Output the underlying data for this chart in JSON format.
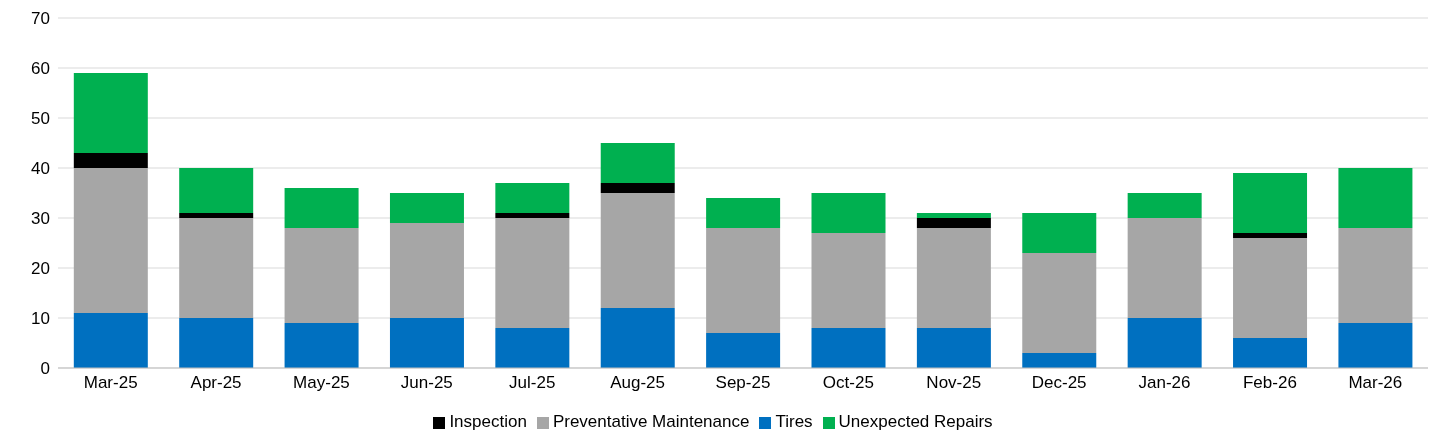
{
  "chart_data": {
    "type": "bar",
    "stacked": true,
    "categories": [
      "Mar-25",
      "Apr-25",
      "May-25",
      "Jun-25",
      "Jul-25",
      "Aug-25",
      "Sep-25",
      "Oct-25",
      "Nov-25",
      "Dec-25",
      "Jan-26",
      "Feb-26",
      "Mar-26"
    ],
    "series": [
      {
        "name": "Tires",
        "color": "#0070c0",
        "values": [
          11,
          10,
          9,
          10,
          8,
          12,
          7,
          8,
          8,
          3,
          10,
          6,
          9
        ]
      },
      {
        "name": "Preventative Maintenance",
        "color": "#a6a6a6",
        "values": [
          29,
          20,
          19,
          19,
          22,
          23,
          21,
          19,
          20,
          20,
          20,
          20,
          19
        ]
      },
      {
        "name": "Inspection",
        "color": "#000000",
        "values": [
          3,
          1,
          0,
          0,
          1,
          2,
          0,
          0,
          2,
          0,
          0,
          1,
          0
        ]
      },
      {
        "name": "Unexpected Repairs",
        "color": "#00b050",
        "values": [
          16,
          9,
          8,
          6,
          6,
          8,
          6,
          8,
          1,
          8,
          5,
          12,
          12
        ]
      }
    ],
    "ylim": [
      0,
      70
    ],
    "yticks": [
      0,
      10,
      20,
      30,
      40,
      50,
      60,
      70
    ],
    "grid": "y",
    "legend": "bottom"
  }
}
